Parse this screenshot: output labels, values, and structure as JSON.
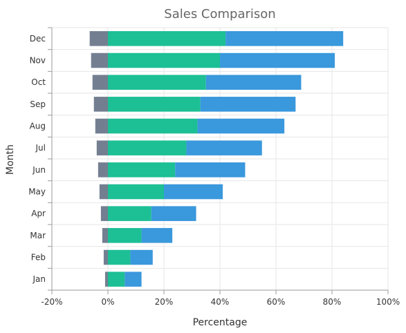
{
  "chart_data": {
    "type": "bar",
    "orientation": "horizontal",
    "stacked": true,
    "title": "Sales Comparison",
    "xlabel": "Percentage",
    "ylabel": "Month",
    "categories": [
      "Jan",
      "Feb",
      "Mar",
      "Apr",
      "May",
      "Jun",
      "Jul",
      "Aug",
      "Sep",
      "Oct",
      "Nov",
      "Dec"
    ],
    "series": [
      {
        "color": "#737f91",
        "values": [
          -1,
          -1.5,
          -2,
          -2.5,
          -3,
          -3.5,
          -4,
          -4.5,
          -5,
          -5.5,
          -6,
          -6.5
        ]
      },
      {
        "color": "#1dbf95",
        "values": [
          6,
          8,
          12,
          15.5,
          20,
          24,
          28,
          32,
          33,
          35,
          40,
          42
        ]
      },
      {
        "color": "#3a98dc",
        "values": [
          6,
          8,
          11,
          16,
          21,
          25,
          27,
          31,
          34,
          34,
          41,
          42
        ]
      }
    ],
    "xlim": [
      -20,
      100
    ],
    "xticks": [
      "-20%",
      "0%",
      "20%",
      "40%",
      "60%",
      "80%",
      "100%"
    ],
    "xtick_values": [
      -20,
      0,
      20,
      40,
      60,
      80,
      100
    ],
    "grid": true,
    "legend": "none"
  }
}
